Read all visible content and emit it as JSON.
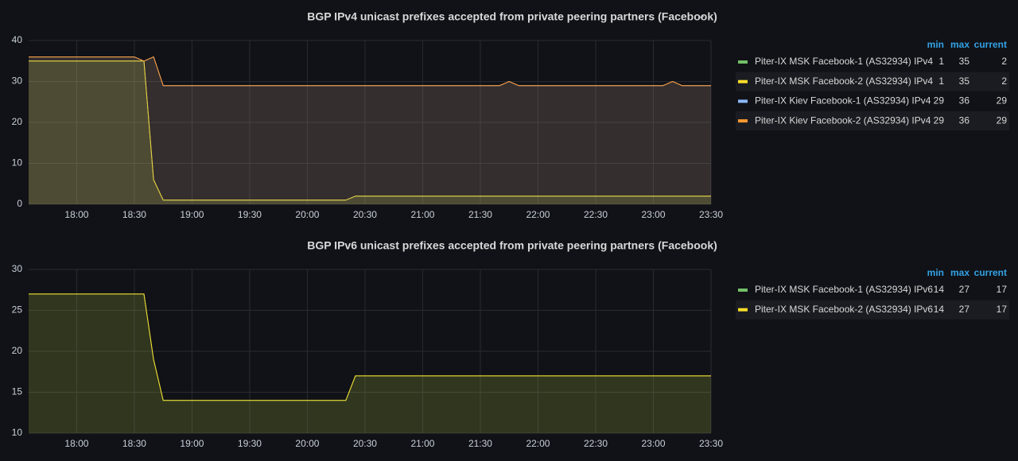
{
  "chart_data": [
    {
      "type": "line",
      "title": "BGP IPv4 unicast prefixes accepted from private peering partners (Facebook)",
      "x": [
        "17:35",
        "18:30",
        "18:35",
        "18:40",
        "18:45",
        "20:20",
        "20:25",
        "21:40",
        "21:45",
        "21:50",
        "23:05",
        "23:10",
        "23:15",
        "23:30"
      ],
      "xlim": [
        "17:35",
        "23:30"
      ],
      "xticks": [
        "18:00",
        "18:30",
        "19:00",
        "19:30",
        "20:00",
        "20:30",
        "21:00",
        "21:30",
        "22:00",
        "22:30",
        "23:00",
        "23:30"
      ],
      "ylim": [
        0,
        40
      ],
      "yticks": [
        0,
        10,
        20,
        30,
        40
      ],
      "grid": true,
      "fill_area": true,
      "legend_columns": [
        "min",
        "max",
        "current"
      ],
      "series": [
        {
          "name": "Piter-IX MSK Facebook-1 (AS32934) IPv4",
          "color": "#73bf69",
          "values": [
            35,
            35,
            35,
            6,
            1,
            1,
            2,
            2,
            2,
            2,
            2,
            2,
            2,
            2
          ],
          "min": 1,
          "max": 35,
          "current": 2
        },
        {
          "name": "Piter-IX MSK Facebook-2 (AS32934) IPv4",
          "color": "#fade2a",
          "values": [
            35,
            35,
            35,
            6,
            1,
            1,
            2,
            2,
            2,
            2,
            2,
            2,
            2,
            2
          ],
          "min": 1,
          "max": 35,
          "current": 2
        },
        {
          "name": "Piter-IX Kiev Facebook-1 (AS32934) IPv4",
          "color": "#8ab8ff",
          "values": [
            36,
            36,
            35,
            36,
            29,
            29,
            29,
            29,
            30,
            29,
            29,
            30,
            29,
            29
          ],
          "min": 29,
          "max": 36,
          "current": 29
        },
        {
          "name": "Piter-IX Kiev Facebook-2 (AS32934) IPv4",
          "color": "#ff9830",
          "values": [
            36,
            36,
            35,
            36,
            29,
            29,
            29,
            29,
            30,
            29,
            29,
            30,
            29,
            29
          ],
          "min": 29,
          "max": 36,
          "current": 29
        }
      ]
    },
    {
      "type": "line",
      "title": "BGP IPv6 unicast prefixes accepted from private peering partners (Facebook)",
      "x": [
        "17:35",
        "18:35",
        "18:40",
        "18:45",
        "20:20",
        "20:25",
        "23:30"
      ],
      "xlim": [
        "17:35",
        "23:30"
      ],
      "xticks": [
        "18:00",
        "18:30",
        "19:00",
        "19:30",
        "20:00",
        "20:30",
        "21:00",
        "21:30",
        "22:00",
        "22:30",
        "23:00",
        "23:30"
      ],
      "ylim": [
        10,
        30
      ],
      "yticks": [
        10,
        15,
        20,
        25,
        30
      ],
      "grid": true,
      "fill_area": true,
      "legend_columns": [
        "min",
        "max",
        "current"
      ],
      "series": [
        {
          "name": "Piter-IX MSK Facebook-1 (AS32934) IPv6",
          "color": "#73bf69",
          "values": [
            27,
            27,
            19,
            14,
            14,
            17,
            17
          ],
          "min": 14,
          "max": 27,
          "current": 17
        },
        {
          "name": "Piter-IX MSK Facebook-2 (AS32934) IPv6",
          "color": "#fade2a",
          "values": [
            27,
            27,
            19,
            14,
            14,
            17,
            17
          ],
          "min": 14,
          "max": 27,
          "current": 17
        }
      ]
    }
  ]
}
